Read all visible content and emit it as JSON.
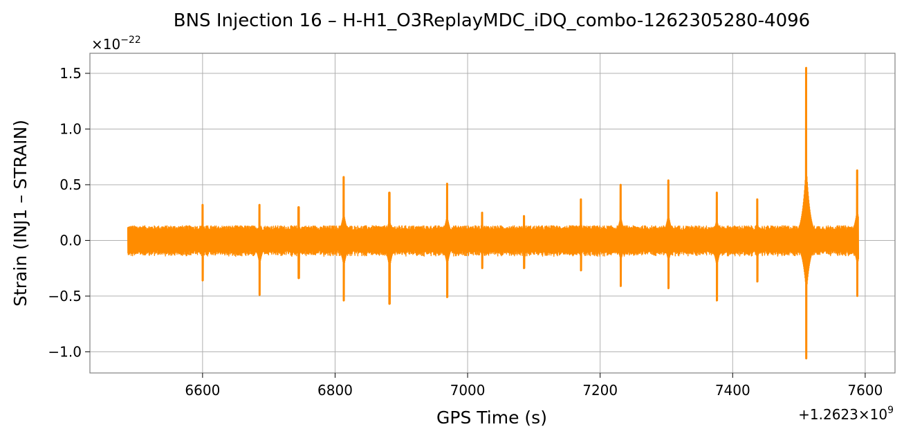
{
  "chart_data": {
    "type": "line",
    "title": "BNS Injection 16 – H-H1_O3ReplayMDC_iDQ_combo-1262305280-4096",
    "xlabel": "GPS Time (s)",
    "ylabel": "Strain (INJ1 – STRAIN)",
    "x_offset_label": "+1.2623×10",
    "x_offset_exp": "9",
    "y_multiplier_label": "×10",
    "y_multiplier_exp": "−22",
    "xlim": [
      6430,
      7645
    ],
    "ylim": [
      -1.19,
      1.68
    ],
    "x_ticks": [
      6600,
      6800,
      7000,
      7200,
      7400,
      7600
    ],
    "y_ticks": [
      -1.0,
      -0.5,
      0.0,
      0.5,
      1.0,
      1.5
    ],
    "y_tick_labels": [
      "−1.0",
      "−0.5",
      "0.0",
      "0.5",
      "1.0",
      "1.5"
    ],
    "grid": true,
    "series": [
      {
        "color": "#ff8c00",
        "x_start": 6487,
        "x_end": 7590,
        "baseline_amplitude": 0.12,
        "glitches": [
          {
            "x": 6600,
            "max": 0.32,
            "min": -0.36
          },
          {
            "x": 6686,
            "max": 0.32,
            "min": -0.49
          },
          {
            "x": 6745,
            "max": 0.3,
            "min": -0.34
          },
          {
            "x": 6813,
            "max": 0.57,
            "min": -0.54
          },
          {
            "x": 6882,
            "max": 0.43,
            "min": -0.57
          },
          {
            "x": 6969,
            "max": 0.51,
            "min": -0.51
          },
          {
            "x": 7022,
            "max": 0.25,
            "min": -0.25
          },
          {
            "x": 7085,
            "max": 0.22,
            "min": -0.25
          },
          {
            "x": 7171,
            "max": 0.37,
            "min": -0.27
          },
          {
            "x": 7231,
            "max": 0.5,
            "min": -0.41
          },
          {
            "x": 7303,
            "max": 0.54,
            "min": -0.43
          },
          {
            "x": 7376,
            "max": 0.43,
            "min": -0.54
          },
          {
            "x": 7437,
            "max": 0.37,
            "min": -0.37
          },
          {
            "x": 7511,
            "max": 1.55,
            "min": -1.06
          },
          {
            "x": 7588,
            "max": 0.63,
            "min": -0.5
          }
        ]
      }
    ]
  }
}
